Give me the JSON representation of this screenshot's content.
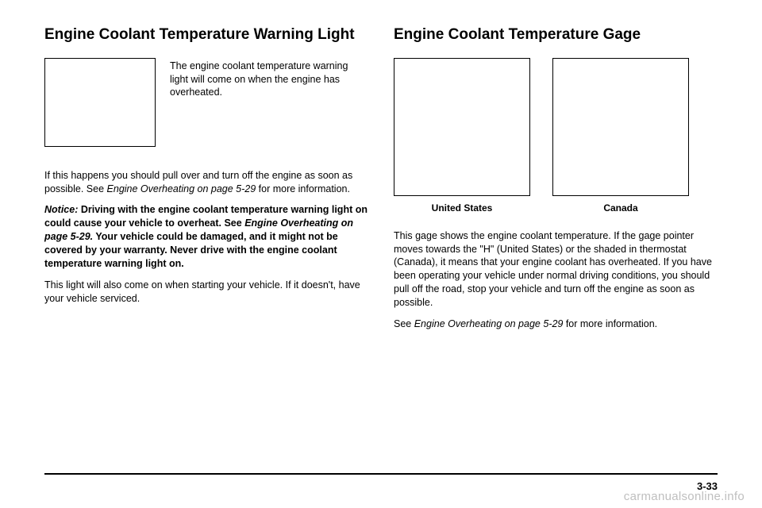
{
  "left": {
    "heading": "Engine Coolant Temperature Warning Light",
    "iconCaption": "The engine coolant temperature warning light will come on when the engine has overheated.",
    "p1_a": "If this happens you should pull over and turn off the engine as soon as possible. See ",
    "p1_b": "Engine Overheating on page 5-29",
    "p1_c": " for more information.",
    "p2_a": "Notice:",
    "p2_b": "   Driving with the engine coolant temperature warning light on could cause your vehicle to overheat. See ",
    "p2_c": "Engine Overheating on page 5-29.",
    "p2_d": " Your vehicle could be damaged, and it might not be covered by your warranty. Never drive with the engine coolant temperature warning light on.",
    "p3": "This light will also come on when starting your vehicle. If it doesn't, have your vehicle serviced."
  },
  "right": {
    "heading": "Engine Coolant Temperature Gage",
    "cap1": "United States",
    "cap2": "Canada",
    "p1": "This gage shows the engine coolant temperature. If the gage pointer moves towards the \"H\" (United States) or the shaded in thermostat (Canada), it means that your engine coolant has overheated. If you have been operating your vehicle under normal driving conditions, you should pull off the road, stop your vehicle and turn off the engine as soon as possible.",
    "p2_a": "See ",
    "p2_b": "Engine Overheating on page 5-29",
    "p2_c": " for more information."
  },
  "footer": {
    "pageNumber": "3-33",
    "watermark": "carmanualsonline.info"
  },
  "style": {
    "iconBoxBorder": "#000000",
    "textColor": "#000000",
    "watermarkColor": "#bfbfbf"
  }
}
